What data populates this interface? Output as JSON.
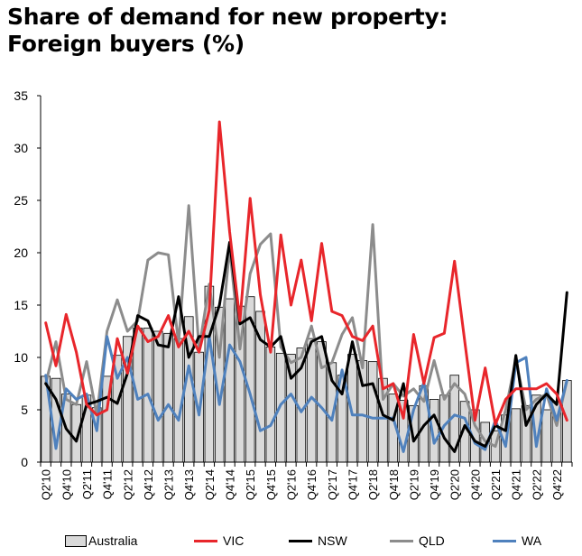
{
  "title_lines": [
    "Share of demand for new property:",
    "Foreign buyers (%)"
  ],
  "legend": [
    {
      "label": "Australia",
      "kind": "bar",
      "color": "#d9d9d9"
    },
    {
      "label": "VIC",
      "kind": "line",
      "color": "#e8262b"
    },
    {
      "label": "NSW",
      "kind": "line",
      "color": "#000000"
    },
    {
      "label": "QLD",
      "kind": "line",
      "color": "#8c8c8c"
    },
    {
      "label": "WA",
      "kind": "line",
      "color": "#4f81bd"
    }
  ],
  "chart_data": {
    "type": "bar",
    "title": "Share of demand for new property: Foreign buyers (%)",
    "xlabel": "",
    "ylabel": "",
    "ylim": [
      0,
      35
    ],
    "yticks": [
      0,
      5,
      10,
      15,
      20,
      25,
      30,
      35
    ],
    "grid": false,
    "legend_position": "bottom",
    "categories": [
      "Q2'10",
      "Q3'10",
      "Q4'10",
      "Q1'11",
      "Q2'11",
      "Q3'11",
      "Q4'11",
      "Q1'12",
      "Q2'12",
      "Q3'12",
      "Q4'12",
      "Q1'13",
      "Q2'13",
      "Q3'13",
      "Q4'13",
      "Q1'14",
      "Q2'14",
      "Q3'14",
      "Q4'14",
      "Q1'15",
      "Q2'15",
      "Q3'15",
      "Q4'15",
      "Q1'16",
      "Q2'16",
      "Q3'16",
      "Q4'16",
      "Q1'17",
      "Q2'17",
      "Q3'17",
      "Q4'17",
      "Q1'18",
      "Q2'18",
      "Q3'18",
      "Q4'18",
      "Q1'19",
      "Q2'19",
      "Q3'19",
      "Q4'19",
      "Q1'20",
      "Q2'20",
      "Q3'20",
      "Q4'20",
      "Q1'21",
      "Q2'21",
      "Q3'21",
      "Q4'21",
      "Q1'22",
      "Q2'22",
      "Q3'22",
      "Q4'22",
      "Q1'23"
    ],
    "xtick_labels": [
      "Q2'10",
      "Q4'10",
      "Q2'11",
      "Q4'11",
      "Q2'12",
      "Q4'12",
      "Q2'13",
      "Q4'13",
      "Q2'14",
      "Q4'14",
      "Q2'15",
      "Q4'15",
      "Q2'16",
      "Q4'16",
      "Q2'17",
      "Q4'17",
      "Q2'18",
      "Q4'18",
      "Q2'19",
      "Q4'19",
      "Q2'20",
      "Q4'20",
      "Q2'21",
      "Q4'21",
      "Q2'22",
      "Q4'22"
    ],
    "series": [
      {
        "name": "Australia",
        "type": "bar",
        "color": "#d9d9d9",
        "values": [
          8.2,
          8.0,
          6.5,
          5.5,
          6.4,
          5.2,
          8.2,
          10.2,
          12.0,
          12.8,
          12.8,
          12.5,
          12.3,
          11.8,
          13.9,
          10.5,
          16.8,
          14.8,
          15.6,
          14.9,
          15.8,
          14.4,
          11.0,
          10.4,
          10.3,
          10.9,
          11.8,
          11.5,
          9.5,
          8.3,
          10.3,
          9.7,
          9.6,
          8.0,
          6.5,
          5.9,
          5.4,
          7.3,
          6.0,
          6.4,
          8.3,
          5.8,
          5.0,
          3.8,
          3.0,
          4.5,
          5.1,
          5.4,
          6.4,
          5.0,
          5.8,
          7.8
        ]
      },
      {
        "name": "VIC",
        "type": "line",
        "color": "#e8262b",
        "values": [
          13.3,
          9.2,
          14.1,
          10.5,
          5.5,
          4.5,
          5.0,
          11.8,
          8.5,
          13.0,
          11.5,
          12.0,
          14.0,
          11.0,
          12.5,
          10.5,
          14.5,
          32.5,
          22.0,
          13.5,
          25.2,
          16.0,
          10.5,
          21.7,
          15.0,
          19.3,
          13.5,
          20.9,
          14.4,
          14.0,
          12.0,
          11.6,
          13.0,
          7.0,
          7.5,
          4.2,
          12.2,
          7.5,
          11.9,
          12.3,
          19.2,
          11.5,
          4.0,
          9.0,
          3.6,
          6.0,
          7.0,
          7.0,
          7.0,
          7.5,
          6.5,
          4.0
        ]
      },
      {
        "name": "NSW",
        "type": "line",
        "color": "#000000",
        "values": [
          7.5,
          6.0,
          3.2,
          2.0,
          5.5,
          5.8,
          6.2,
          5.6,
          8.5,
          14.0,
          13.5,
          11.2,
          11.0,
          15.8,
          10.0,
          12.0,
          12.0,
          15.0,
          21.0,
          13.2,
          13.8,
          11.7,
          11.0,
          12.0,
          8.0,
          9.0,
          11.5,
          12.0,
          7.8,
          6.5,
          11.5,
          7.3,
          7.5,
          4.5,
          4.0,
          7.5,
          2.0,
          3.5,
          4.5,
          2.3,
          1.0,
          3.5,
          2.0,
          1.5,
          3.5,
          3.0,
          10.2,
          3.5,
          5.5,
          6.5,
          5.5,
          16.2
        ]
      },
      {
        "name": "QLD",
        "type": "line",
        "color": "#8c8c8c",
        "values": [
          7.5,
          11.5,
          6.0,
          5.5,
          9.6,
          4.5,
          12.5,
          15.5,
          12.5,
          13.5,
          19.3,
          20.0,
          19.8,
          11.3,
          24.5,
          10.8,
          17.0,
          10.0,
          20.5,
          10.8,
          18.0,
          20.8,
          21.8,
          11.0,
          9.5,
          10.0,
          13.0,
          9.0,
          9.5,
          12.2,
          13.8,
          9.0,
          22.7,
          6.0,
          7.5,
          6.3,
          7.0,
          5.8,
          9.7,
          6.0,
          7.5,
          6.5,
          3.5,
          2.0,
          1.5,
          5.0,
          9.8,
          5.0,
          6.0,
          6.5,
          3.5,
          7.8
        ]
      },
      {
        "name": "WA",
        "type": "line",
        "color": "#4f81bd",
        "values": [
          8.3,
          1.3,
          7.0,
          6.0,
          6.5,
          3.0,
          12.0,
          8.0,
          10.0,
          6.0,
          6.5,
          4.0,
          5.5,
          4.0,
          9.2,
          4.5,
          12.0,
          5.5,
          11.2,
          9.6,
          6.5,
          3.0,
          3.5,
          5.5,
          6.5,
          4.8,
          6.2,
          5.2,
          4.0,
          8.8,
          4.5,
          4.5,
          4.2,
          4.2,
          4.2,
          1.0,
          5.0,
          7.6,
          1.8,
          3.5,
          4.5,
          4.2,
          1.8,
          1.2,
          4.0,
          1.5,
          9.5,
          10.0,
          1.5,
          7.0,
          4.0,
          7.8
        ]
      }
    ]
  }
}
